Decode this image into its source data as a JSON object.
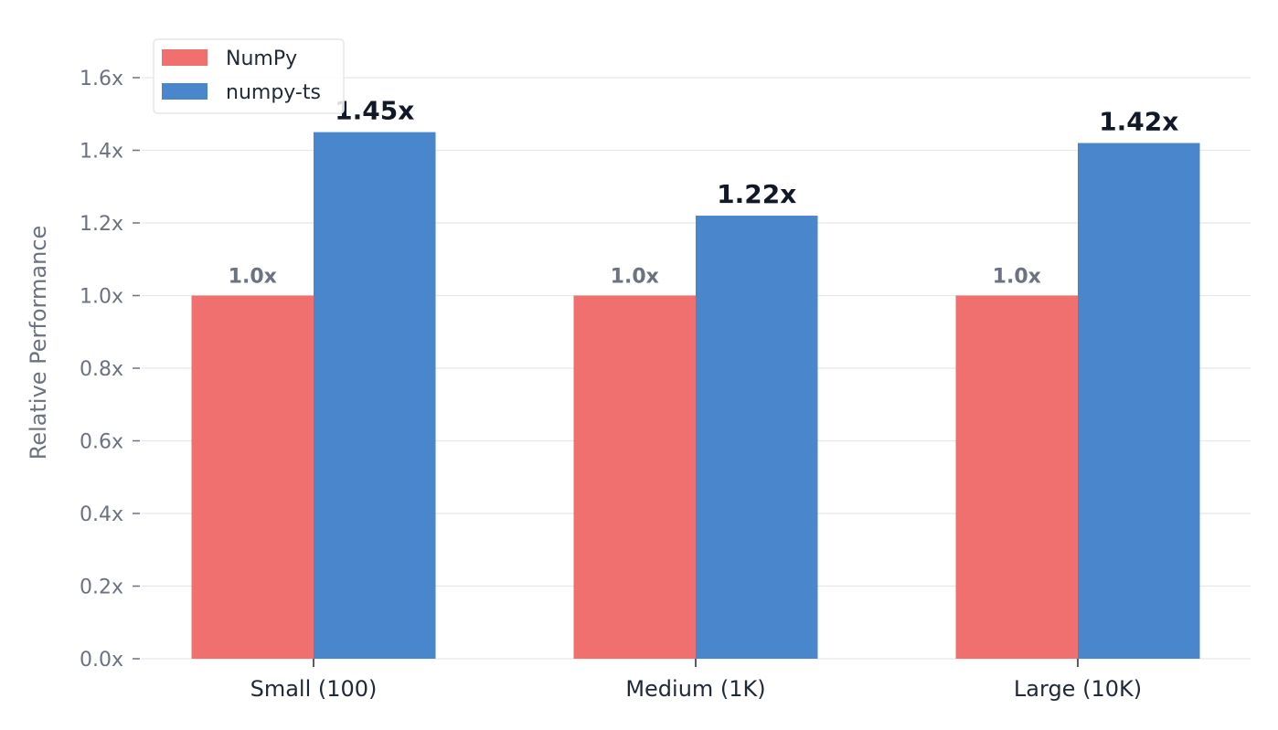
{
  "chart_data": {
    "type": "bar",
    "title": "",
    "xlabel": "",
    "ylabel": "Relative Performance",
    "ylim": [
      0,
      1.6
    ],
    "yticks": [
      "0.0x",
      "0.2x",
      "0.4x",
      "0.6x",
      "0.8x",
      "1.0x",
      "1.2x",
      "1.4x",
      "1.6x"
    ],
    "ytick_values": [
      0,
      0.2,
      0.4,
      0.6,
      0.8,
      1.0,
      1.2,
      1.4,
      1.6
    ],
    "categories": [
      "Small (100)",
      "Medium (1K)",
      "Large (10K)"
    ],
    "series": [
      {
        "name": "NumPy",
        "color": "#f07070",
        "values": [
          1.0,
          1.0,
          1.0
        ],
        "labels": [
          "1.0x",
          "1.0x",
          "1.0x"
        ]
      },
      {
        "name": "numpy-ts",
        "color": "#4a86cc",
        "values": [
          1.45,
          1.22,
          1.42
        ],
        "labels": [
          "1.45x",
          "1.22x",
          "1.42x"
        ]
      }
    ],
    "grid": true,
    "legend_position": "top-left"
  }
}
